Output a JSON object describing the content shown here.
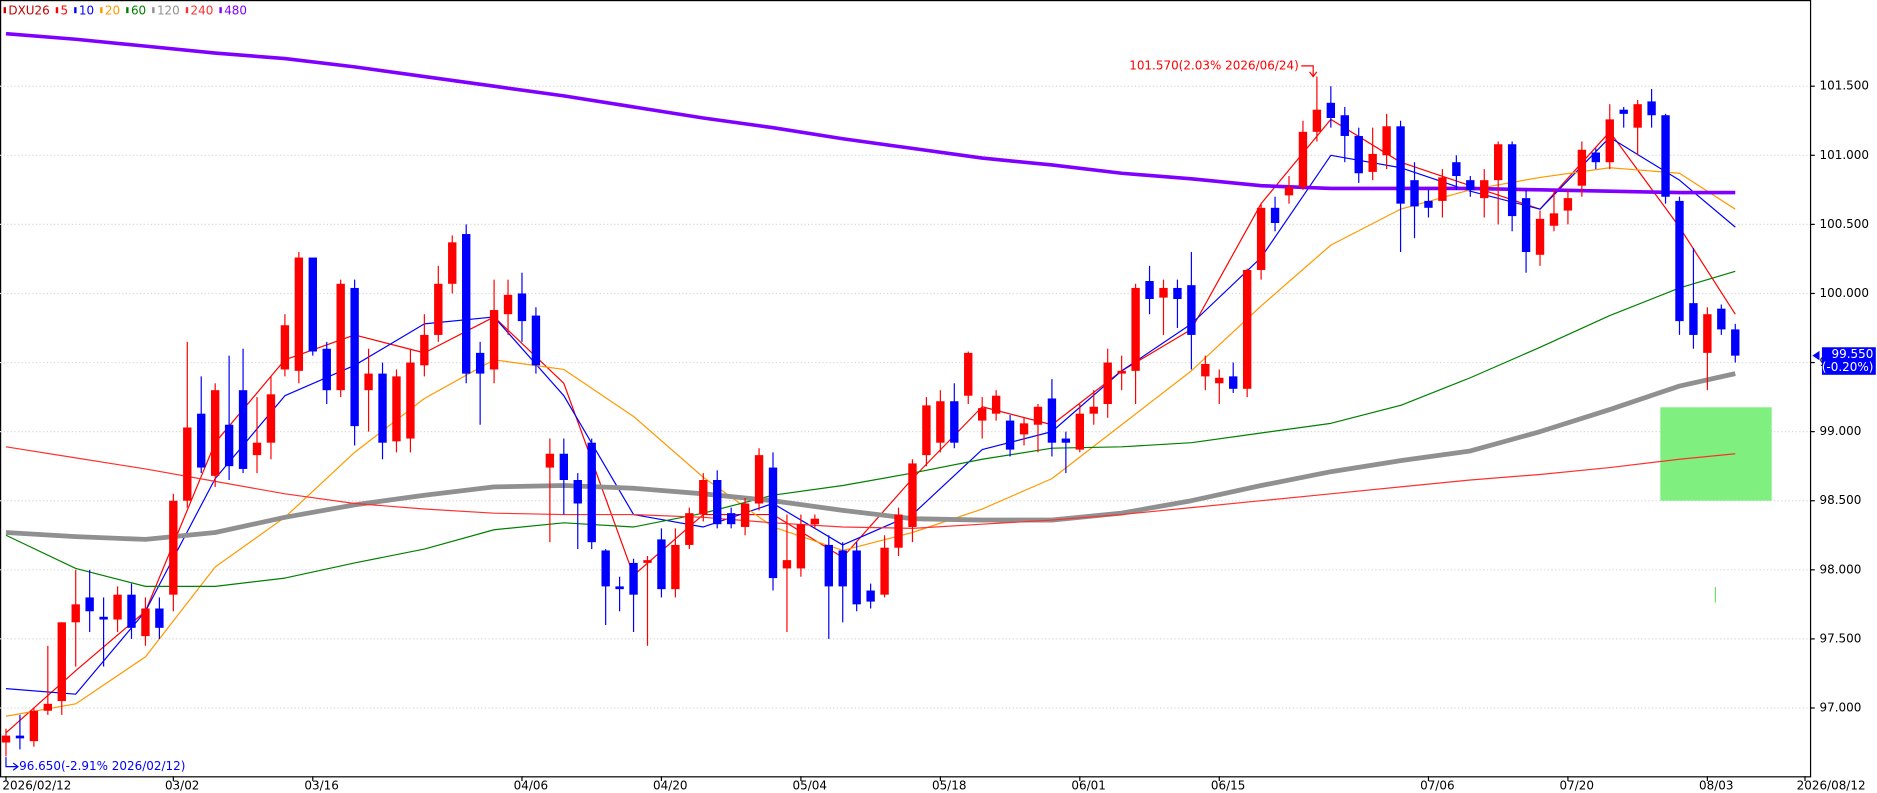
{
  "chart_data": {
    "type": "candlestick",
    "name": "DXU26",
    "name_color": "#c00000",
    "up_color": "#ff0000",
    "down_color": "#0000ff",
    "categories": [
      "2026/02/12",
      null,
      null,
      null,
      null,
      null,
      null,
      null,
      null,
      null,
      null,
      null,
      "03/02",
      null,
      null,
      null,
      null,
      null,
      null,
      null,
      null,
      null,
      "03/16",
      null,
      null,
      null,
      null,
      null,
      null,
      null,
      null,
      null,
      null,
      null,
      null,
      null,
      null,
      "04/06",
      null,
      null,
      null,
      null,
      null,
      null,
      null,
      null,
      null,
      "04/20",
      null,
      null,
      null,
      null,
      null,
      null,
      null,
      null,
      null,
      "05/04",
      null,
      null,
      null,
      null,
      null,
      null,
      null,
      null,
      null,
      "05/18",
      null,
      null,
      null,
      null,
      null,
      null,
      null,
      null,
      null,
      "06/01",
      null,
      null,
      null,
      null,
      null,
      null,
      null,
      null,
      null,
      "06/15",
      null,
      null,
      null,
      null,
      null,
      null,
      null,
      null,
      null,
      null,
      null,
      null,
      null,
      null,
      "07/06",
      null,
      null,
      null,
      null,
      null,
      null,
      null,
      null,
      null,
      "07/20",
      null,
      null,
      null,
      null,
      null,
      null,
      null,
      null,
      null,
      "08/03",
      null,
      null,
      null,
      null,
      null,
      null,
      "2026/08/12"
    ],
    "open": [
      96.75,
      96.8,
      96.76,
      96.98,
      97.05,
      97.62,
      97.8,
      97.66,
      97.64,
      97.82,
      97.52,
      97.72,
      97.82,
      98.5,
      99.13,
      98.68,
      99.05,
      99.3,
      98.83,
      98.92,
      99.45,
      99.44,
      100.26,
      99.6,
      99.3,
      100.04,
      99.3,
      99.42,
      98.93,
      98.95,
      99.48,
      99.7,
      100.07,
      100.43,
      99.57,
      99.45,
      99.85,
      100.0,
      99.84,
      98.74,
      98.84,
      98.65,
      98.92,
      98.14,
      97.88,
      98.05,
      98.05,
      98.22,
      97.86,
      98.18,
      98.4,
      98.65,
      98.41,
      98.31,
      98.48,
      98.74,
      98.01,
      98.01,
      98.33,
      98.18,
      98.14,
      98.14,
      97.85,
      97.82,
      98.16,
      98.31,
      98.83,
      98.92,
      99.22,
      99.26,
      99.08,
      99.13,
      99.08,
      98.98,
      99.05,
      99.24,
      98.95,
      98.87,
      99.13,
      99.2,
      99.42,
      99.44,
      100.09,
      99.97,
      100.04,
      100.06,
      99.4,
      99.35,
      99.4,
      99.31,
      100.17,
      100.62,
      100.71,
      100.77,
      101.17,
      101.38,
      101.29,
      101.14,
      100.88,
      101.0,
      101.21,
      100.82,
      100.67,
      100.67,
      100.95,
      100.82,
      100.69,
      100.82,
      101.08,
      100.69,
      100.28,
      100.49,
      100.6,
      100.78,
      101.02,
      100.95,
      101.33,
      101.2,
      101.39,
      101.29,
      100.67,
      99.93,
      99.57,
      99.89,
      99.74,
      null,
      null,
      null,
      null,
      null
    ],
    "high": [
      96.85,
      96.95,
      97.0,
      97.45,
      97.62,
      98.0,
      98.0,
      97.8,
      97.88,
      97.9,
      97.8,
      97.8,
      98.55,
      99.65,
      99.4,
      99.35,
      99.55,
      99.6,
      99.25,
      99.4,
      99.85,
      100.3,
      100.26,
      99.65,
      100.1,
      100.1,
      99.6,
      99.5,
      99.45,
      99.6,
      99.85,
      100.2,
      100.42,
      100.5,
      99.65,
      100.1,
      100.1,
      100.15,
      99.9,
      98.95,
      98.95,
      98.7,
      98.95,
      98.15,
      97.95,
      98.08,
      98.1,
      98.3,
      98.3,
      98.45,
      98.7,
      98.72,
      98.45,
      98.52,
      98.88,
      98.85,
      98.4,
      98.4,
      98.4,
      98.25,
      98.2,
      98.2,
      97.9,
      98.25,
      98.45,
      98.8,
      99.25,
      99.3,
      99.35,
      99.58,
      99.25,
      99.3,
      99.12,
      99.1,
      99.2,
      99.38,
      99.0,
      99.2,
      99.3,
      99.6,
      99.55,
      100.07,
      100.2,
      100.1,
      100.1,
      100.3,
      99.55,
      99.45,
      99.5,
      100.18,
      100.65,
      100.7,
      100.85,
      101.25,
      101.57,
      101.5,
      101.35,
      101.2,
      101.2,
      101.3,
      101.25,
      100.95,
      100.75,
      100.9,
      101.0,
      100.85,
      100.9,
      101.1,
      101.1,
      100.75,
      100.6,
      100.75,
      100.75,
      101.1,
      101.05,
      101.37,
      101.35,
      101.4,
      101.48,
      101.3,
      100.7,
      100.33,
      99.9,
      99.92,
      99.78,
      null,
      null,
      null,
      null,
      null
    ],
    "low": [
      96.65,
      96.7,
      96.72,
      96.95,
      96.95,
      97.3,
      97.55,
      97.3,
      97.55,
      97.5,
      97.45,
      97.5,
      97.7,
      98.45,
      98.7,
      98.6,
      98.65,
      98.7,
      98.7,
      98.8,
      99.4,
      99.35,
      99.55,
      99.2,
      99.25,
      98.9,
      99.0,
      98.8,
      98.85,
      98.85,
      99.4,
      99.65,
      100.0,
      99.35,
      99.05,
      99.35,
      99.7,
      99.65,
      99.42,
      98.2,
      98.4,
      98.15,
      98.15,
      97.6,
      97.7,
      97.55,
      97.45,
      97.8,
      97.8,
      98.15,
      98.35,
      98.3,
      98.3,
      98.25,
      98.43,
      97.85,
      97.55,
      97.95,
      98.3,
      97.5,
      97.62,
      97.7,
      97.72,
      97.8,
      98.1,
      98.2,
      98.75,
      98.85,
      98.88,
      99.2,
      98.95,
      99.08,
      98.82,
      98.9,
      98.85,
      98.82,
      98.7,
      98.85,
      99.05,
      99.1,
      99.3,
      99.2,
      99.85,
      99.7,
      99.75,
      99.45,
      99.3,
      99.2,
      99.28,
      99.25,
      100.1,
      100.45,
      100.65,
      100.75,
      101.1,
      101.2,
      100.95,
      100.8,
      100.82,
      100.9,
      100.3,
      100.4,
      100.55,
      100.55,
      100.75,
      100.7,
      100.55,
      100.5,
      100.45,
      100.15,
      100.2,
      100.45,
      100.5,
      100.7,
      100.9,
      100.9,
      101.2,
      101.0,
      101.2,
      100.65,
      99.7,
      99.6,
      99.3,
      99.7,
      99.5,
      null,
      null,
      null,
      null,
      null
    ],
    "close": [
      96.8,
      96.78,
      96.98,
      97.03,
      97.62,
      97.75,
      97.7,
      97.64,
      97.82,
      97.58,
      97.72,
      97.58,
      98.5,
      99.03,
      98.74,
      99.3,
      98.75,
      98.73,
      98.92,
      99.27,
      99.77,
      100.26,
      99.58,
      99.3,
      100.07,
      99.04,
      99.42,
      98.92,
      99.4,
      99.5,
      99.7,
      100.07,
      100.37,
      99.42,
      99.42,
      99.88,
      99.99,
      99.8,
      99.48,
      98.84,
      98.65,
      98.48,
      98.2,
      97.88,
      97.86,
      97.82,
      98.07,
      97.86,
      98.18,
      98.41,
      98.65,
      98.33,
      98.33,
      98.48,
      98.83,
      97.94,
      98.07,
      98.33,
      98.37,
      97.88,
      97.88,
      97.75,
      97.77,
      98.16,
      98.4,
      98.77,
      99.19,
      99.22,
      98.92,
      99.57,
      99.17,
      99.26,
      98.87,
      99.06,
      99.18,
      98.92,
      98.92,
      99.13,
      99.18,
      99.5,
      99.44,
      100.04,
      99.96,
      100.04,
      99.96,
      99.7,
      99.49,
      99.39,
      99.31,
      100.17,
      100.62,
      100.51,
      100.77,
      101.17,
      101.33,
      101.27,
      101.14,
      100.87,
      101.01,
      101.21,
      100.65,
      100.63,
      100.62,
      100.84,
      100.85,
      100.75,
      100.82,
      101.08,
      100.56,
      100.3,
      100.54,
      100.58,
      100.69,
      101.04,
      100.95,
      101.26,
      101.3,
      101.37,
      101.29,
      100.7,
      99.8,
      99.7,
      99.85,
      99.74,
      99.55,
      null,
      null,
      null,
      null,
      null
    ],
    "ma_series": [
      {
        "name": "5",
        "color": "#ff0000",
        "x": [
          0,
          5,
          10,
          15,
          20,
          25,
          30,
          35,
          40,
          45,
          50,
          55,
          60,
          65,
          70,
          75,
          80,
          85,
          90,
          95,
          100,
          105,
          110,
          115,
          120,
          124
        ],
        "values": [
          96.82,
          97.27,
          97.7,
          98.92,
          99.52,
          99.7,
          99.57,
          99.83,
          99.35,
          97.96,
          98.4,
          98.4,
          98.09,
          98.66,
          99.18,
          99.05,
          99.44,
          99.74,
          100.65,
          101.26,
          100.95,
          100.78,
          100.61,
          101.17,
          100.48,
          99.85
        ]
      },
      {
        "name": "10",
        "color": "#0000ff",
        "x": [
          0,
          5,
          10,
          15,
          20,
          25,
          30,
          35,
          40,
          45,
          50,
          55,
          60,
          65,
          70,
          75,
          80,
          85,
          90,
          95,
          100,
          105,
          110,
          115,
          120,
          124
        ],
        "values": [
          97.14,
          97.1,
          97.7,
          98.66,
          99.26,
          99.48,
          99.78,
          99.83,
          99.26,
          98.4,
          98.31,
          98.48,
          98.18,
          98.4,
          98.87,
          99.0,
          99.44,
          99.78,
          100.26,
          101.0,
          100.91,
          100.74,
          100.61,
          101.13,
          100.82,
          100.48
        ]
      },
      {
        "name": "20",
        "color": "#ff9900",
        "x": [
          0,
          5,
          10,
          15,
          20,
          25,
          30,
          35,
          40,
          45,
          50,
          55,
          60,
          65,
          70,
          75,
          80,
          85,
          90,
          95,
          100,
          105,
          110,
          115,
          120,
          124
        ],
        "values": [
          96.94,
          97.03,
          97.37,
          98.02,
          98.38,
          98.85,
          99.24,
          99.52,
          99.45,
          99.11,
          98.67,
          98.31,
          98.14,
          98.27,
          98.44,
          98.66,
          99.05,
          99.44,
          99.91,
          100.35,
          100.61,
          100.75,
          100.84,
          100.91,
          100.87,
          100.61
        ]
      },
      {
        "name": "60",
        "color": "#008000",
        "x": [
          0,
          5,
          10,
          15,
          20,
          25,
          30,
          35,
          40,
          45,
          50,
          55,
          60,
          65,
          70,
          75,
          80,
          85,
          90,
          95,
          100,
          105,
          110,
          115,
          120,
          124
        ],
        "values": [
          98.25,
          98.01,
          97.88,
          97.88,
          97.94,
          98.05,
          98.15,
          98.29,
          98.34,
          98.31,
          98.41,
          98.54,
          98.61,
          98.7,
          98.8,
          98.88,
          98.89,
          98.92,
          98.99,
          99.06,
          99.19,
          99.39,
          99.61,
          99.84,
          100.04,
          100.16
        ]
      },
      {
        "name": "120",
        "color": "#909090",
        "x": [
          0,
          5,
          10,
          15,
          20,
          25,
          30,
          35,
          40,
          45,
          50,
          55,
          60,
          65,
          70,
          75,
          80,
          85,
          90,
          95,
          100,
          105,
          110,
          115,
          120,
          124
        ],
        "values": [
          98.27,
          98.24,
          98.22,
          98.27,
          98.38,
          98.47,
          98.54,
          98.6,
          98.61,
          98.59,
          98.55,
          98.5,
          98.43,
          98.37,
          98.36,
          98.36,
          98.41,
          98.5,
          98.61,
          98.71,
          98.79,
          98.86,
          99.0,
          99.16,
          99.33,
          99.42
        ]
      },
      {
        "name": "240",
        "color": "#ff3030",
        "x": [
          0,
          5,
          10,
          15,
          20,
          25,
          30,
          35,
          40,
          45,
          50,
          55,
          60,
          65,
          70,
          75,
          80,
          85,
          90,
          95,
          100,
          105,
          110,
          115,
          120,
          124
        ],
        "values": [
          98.89,
          98.81,
          98.73,
          98.64,
          98.55,
          98.48,
          98.44,
          98.41,
          98.4,
          98.4,
          98.38,
          98.34,
          98.31,
          98.3,
          98.33,
          98.36,
          98.4,
          98.45,
          98.5,
          98.55,
          98.6,
          98.65,
          98.69,
          98.74,
          98.8,
          98.84
        ]
      },
      {
        "name": "480",
        "color": "#8000ff",
        "x": [
          0,
          5,
          10,
          15,
          20,
          25,
          30,
          35,
          40,
          45,
          50,
          55,
          60,
          65,
          70,
          75,
          80,
          85,
          90,
          95,
          100,
          105,
          110,
          115,
          120,
          124
        ],
        "values": [
          101.88,
          101.84,
          101.79,
          101.74,
          101.7,
          101.64,
          101.57,
          101.5,
          101.43,
          101.35,
          101.27,
          101.2,
          101.12,
          101.05,
          100.98,
          100.93,
          100.87,
          100.83,
          100.78,
          100.76,
          100.76,
          100.76,
          100.75,
          100.74,
          100.73,
          100.73
        ]
      }
    ],
    "ylim": [
      96.506,
      102.124
    ],
    "yticks": [
      {
        "value": 97,
        "label": "97.000"
      },
      {
        "value": 97.5,
        "label": "97.500"
      },
      {
        "value": 98,
        "label": "98.000"
      },
      {
        "value": 98.5,
        "label": "98.500"
      },
      {
        "value": 99,
        "label": "99.000"
      },
      {
        "value": 99.5,
        "label": "99.500"
      },
      {
        "value": 100,
        "label": "100.000"
      },
      {
        "value": 100.5,
        "label": "100.500"
      },
      {
        "value": 101,
        "label": "101.000"
      },
      {
        "value": 101.5,
        "label": "101.500"
      }
    ],
    "grid": true,
    "high_annotation": "101.570(2.03% 2026/06/24)",
    "low_annotation": "96.650(-2.91% 2026/02/12)",
    "last_price": {
      "label": "99.550",
      "change": "(-0.20%)"
    }
  }
}
